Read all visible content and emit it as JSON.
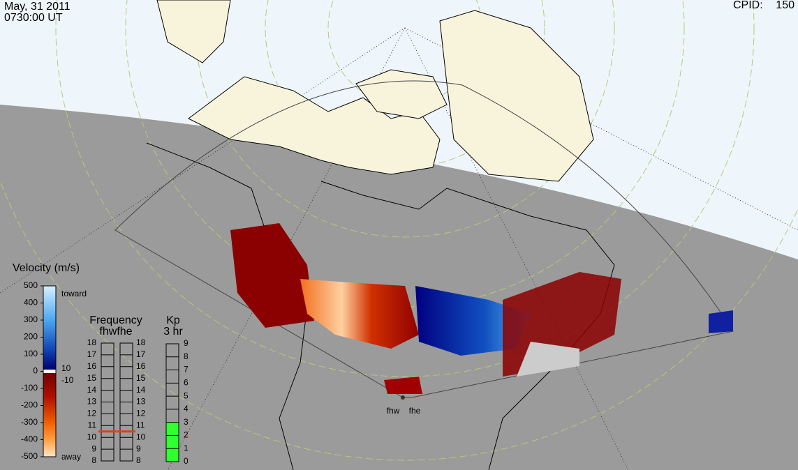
{
  "header": {
    "date": "May, 31 2011",
    "time": "0730:00 UT",
    "cpid_label": "CPID:",
    "cpid": 150
  },
  "velocity_scale": {
    "title": "Velocity (m/s)",
    "range": [
      -500,
      500
    ],
    "ticks": [
      500,
      400,
      300,
      200,
      100,
      0,
      -100,
      -200,
      -300,
      -400,
      -500
    ],
    "toward": "toward",
    "away": "away",
    "gap_labels": [
      10,
      -10
    ]
  },
  "frequency": {
    "title": "Frequency",
    "subtitle": "fhwfhe",
    "range": [
      8,
      18
    ],
    "ticks": [
      8,
      9,
      10,
      11,
      12,
      13,
      14,
      15,
      16,
      17,
      18
    ],
    "values": [
      10.5,
      10.5
    ]
  },
  "kp": {
    "title": "Kp",
    "subtitle": "3 hr",
    "range": [
      0,
      9
    ],
    "ticks": [
      0,
      1,
      2,
      3,
      4,
      5,
      6,
      7,
      8,
      9
    ],
    "value": 3
  },
  "stations": [
    "fhw",
    "fhe"
  ]
}
